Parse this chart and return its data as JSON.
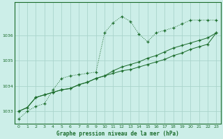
{
  "title": "Graphe pression niveau de la mer (hPa)",
  "background_color": "#cceee8",
  "grid_color": "#aad4cc",
  "line_color": "#1a6b2a",
  "xlim": [
    -0.5,
    23.5
  ],
  "ylim": [
    1032.5,
    1037.3
  ],
  "yticks": [
    1033,
    1034,
    1035,
    1036
  ],
  "xticks": [
    0,
    1,
    2,
    3,
    4,
    5,
    6,
    7,
    8,
    9,
    10,
    11,
    12,
    13,
    14,
    15,
    16,
    17,
    18,
    19,
    20,
    21,
    22,
    23
  ],
  "series1_x": [
    0,
    1,
    2,
    3,
    4,
    5,
    6,
    7,
    8,
    9,
    10,
    11,
    12,
    13,
    14,
    15,
    16,
    17,
    18,
    19,
    20,
    21,
    22,
    23
  ],
  "series1_y": [
    1032.7,
    1033.0,
    1033.2,
    1033.3,
    1033.85,
    1034.3,
    1034.4,
    1034.45,
    1034.5,
    1034.55,
    1036.1,
    1036.5,
    1036.75,
    1036.55,
    1036.05,
    1035.75,
    1036.1,
    1036.2,
    1036.3,
    1036.45,
    1036.6,
    1036.6,
    1036.6,
    1036.6
  ],
  "series2_x": [
    0,
    1,
    2,
    3,
    4,
    5,
    6,
    7,
    8,
    9,
    10,
    11,
    12,
    13,
    14,
    15,
    16,
    17,
    18,
    19,
    20,
    21,
    22,
    23
  ],
  "series2_y": [
    1033.0,
    1033.15,
    1033.55,
    1033.65,
    1033.75,
    1033.85,
    1033.9,
    1034.05,
    1034.15,
    1034.3,
    1034.4,
    1034.5,
    1034.6,
    1034.65,
    1034.75,
    1034.85,
    1034.95,
    1035.05,
    1035.2,
    1035.3,
    1035.45,
    1035.55,
    1035.65,
    1036.1
  ],
  "series3_x": [
    0,
    1,
    2,
    3,
    4,
    5,
    6,
    7,
    8,
    9,
    10,
    11,
    12,
    13,
    14,
    15,
    16,
    17,
    18,
    19,
    20,
    21,
    22,
    23
  ],
  "series3_y": [
    1033.0,
    1033.15,
    1033.55,
    1033.65,
    1033.75,
    1033.85,
    1033.9,
    1034.05,
    1034.15,
    1034.3,
    1034.4,
    1034.6,
    1034.75,
    1034.85,
    1034.95,
    1035.1,
    1035.2,
    1035.35,
    1035.5,
    1035.6,
    1035.7,
    1035.8,
    1035.9,
    1036.1
  ]
}
